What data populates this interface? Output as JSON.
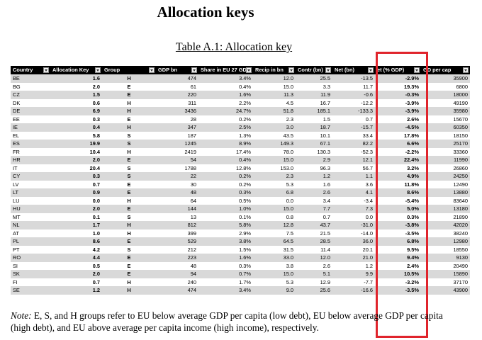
{
  "heading": "Allocation keys",
  "caption": "Table A.1: Allocation key",
  "columns": [
    "Country",
    "Allocation Key",
    "Group",
    "GDP bn",
    "Share in EU 27 GDP",
    "Recip in bn",
    "Contr (bn)",
    "Net (bn)",
    "et (% GDP)",
    "GD per cap"
  ],
  "rows": [
    [
      "BE",
      "1.6",
      "H",
      "474",
      "3.4%",
      "12.0",
      "25.5",
      "-13.5",
      "-2.9%",
      "35900"
    ],
    [
      "BG",
      "2.0",
      "E",
      "61",
      "0.4%",
      "15.0",
      "3.3",
      "11.7",
      "19.3%",
      "6800"
    ],
    [
      "CZ",
      "1.5",
      "E",
      "220",
      "1.6%",
      "11.3",
      "11.9",
      "-0.6",
      "-0.3%",
      "18000"
    ],
    [
      "DK",
      "0.6",
      "H",
      "311",
      "2.2%",
      "4.5",
      "16.7",
      "-12.2",
      "-3.9%",
      "49190"
    ],
    [
      "DE",
      "6.9",
      "H",
      "3436",
      "24.7%",
      "51.8",
      "185.1",
      "-133.3",
      "-3.9%",
      "35980"
    ],
    [
      "EE",
      "0.3",
      "E",
      "28",
      "0.2%",
      "2.3",
      "1.5",
      "0.7",
      "2.6%",
      "15670"
    ],
    [
      "IE",
      "0.4",
      "H",
      "347",
      "2.5%",
      "3.0",
      "18.7",
      "-15.7",
      "-4.5%",
      "60350"
    ],
    [
      "EL",
      "5.8",
      "S",
      "187",
      "1.3%",
      "43.5",
      "10.1",
      "33.4",
      "17.8%",
      "18150"
    ],
    [
      "ES",
      "19.9",
      "S",
      "1245",
      "8.9%",
      "149.3",
      "67.1",
      "82.2",
      "6.6%",
      "25170"
    ],
    [
      "FR",
      "10.4",
      "H",
      "2419",
      "17.4%",
      "78.0",
      "130.3",
      "-52.3",
      "-2.2%",
      "33360"
    ],
    [
      "HR",
      "2.0",
      "E",
      "54",
      "0.4%",
      "15.0",
      "2.9",
      "12.1",
      "22.4%",
      "11990"
    ],
    [
      "IT",
      "20.4",
      "S",
      "1788",
      "12.8%",
      "153.0",
      "96.3",
      "56.7",
      "3.2%",
      "26860"
    ],
    [
      "CY",
      "0.3",
      "S",
      "22",
      "0.2%",
      "2.3",
      "1.2",
      "1.1",
      "4.9%",
      "24250"
    ],
    [
      "LV",
      "0.7",
      "E",
      "30",
      "0.2%",
      "5.3",
      "1.6",
      "3.6",
      "11.8%",
      "12490"
    ],
    [
      "LT",
      "0.9",
      "E",
      "48",
      "0.3%",
      "6.8",
      "2.6",
      "4.1",
      "8.6%",
      "13880"
    ],
    [
      "LU",
      "0.0",
      "H",
      "64",
      "0.5%",
      "0.0",
      "3.4",
      "-3.4",
      "-5.4%",
      "83640"
    ],
    [
      "HU",
      "2.0",
      "E",
      "144",
      "1.0%",
      "15.0",
      "7.7",
      "7.3",
      "5.0%",
      "13180"
    ],
    [
      "MT",
      "0.1",
      "S",
      "13",
      "0.1%",
      "0.8",
      "0.7",
      "0.0",
      "0.3%",
      "21890"
    ],
    [
      "NL",
      "1.7",
      "H",
      "812",
      "5.8%",
      "12.8",
      "43.7",
      "-31.0",
      "-3.8%",
      "42020"
    ],
    [
      "AT",
      "1.0",
      "H",
      "399",
      "2.9%",
      "7.5",
      "21.5",
      "-14.0",
      "-3.5%",
      "38240"
    ],
    [
      "PL",
      "8.6",
      "E",
      "529",
      "3.8%",
      "64.5",
      "28.5",
      "36.0",
      "6.8%",
      "12980"
    ],
    [
      "PT",
      "4.2",
      "S",
      "212",
      "1.5%",
      "31.5",
      "11.4",
      "20.1",
      "9.5%",
      "18550"
    ],
    [
      "RO",
      "4.4",
      "E",
      "223",
      "1.6%",
      "33.0",
      "12.0",
      "21.0",
      "9.4%",
      "9130"
    ],
    [
      "SI",
      "0.5",
      "E",
      "48",
      "0.3%",
      "3.8",
      "2.6",
      "1.2",
      "2.4%",
      "20490"
    ],
    [
      "SK",
      "2.0",
      "E",
      "94",
      "0.7%",
      "15.0",
      "5.1",
      "9.9",
      "10.5%",
      "15890"
    ],
    [
      "FI",
      "0.7",
      "H",
      "240",
      "1.7%",
      "5.3",
      "12.9",
      "-7.7",
      "-3.2%",
      "37170"
    ],
    [
      "SE",
      "1.2",
      "H",
      "474",
      "3.4%",
      "9.0",
      "25.6",
      "-16.6",
      "-3.5%",
      "43900"
    ]
  ],
  "note": {
    "label": "Note:",
    "text": " E, S, and H groups refer to EU below average GDP per capita (low debt), EU below average GDP per capita (high debt), and EU above average per capita income (high income), respectively."
  },
  "highlight_color": "#e0242c"
}
